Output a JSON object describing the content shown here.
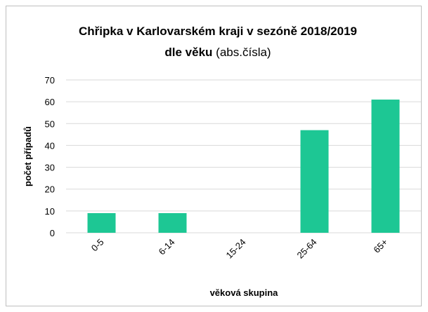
{
  "chart_data": {
    "type": "bar",
    "title": "Chřipka v Karlovarském kraji v sezóně 2018/2019",
    "subtitle": [
      "dle věku",
      "(abs.čísla)"
    ],
    "x_label": "věková skupina",
    "y_label": "počet případů",
    "categories": [
      "0-5",
      "6-14",
      "15-24",
      "25-64",
      "65+"
    ],
    "values": [
      9,
      9,
      0,
      47,
      61
    ],
    "color": "#1dc794",
    "ylim": [
      0,
      70
    ],
    "yticks": [
      0,
      10,
      20,
      30,
      40,
      50,
      60,
      70
    ],
    "grid": true
  }
}
